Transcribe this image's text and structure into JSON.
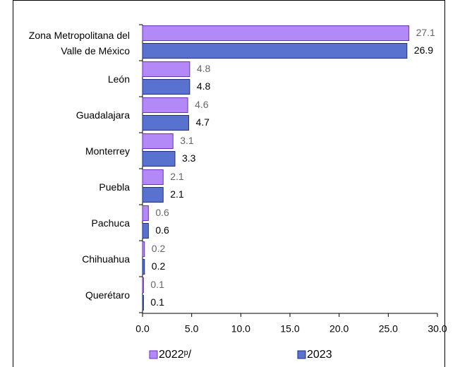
{
  "chart_data": {
    "type": "bar",
    "orientation": "horizontal",
    "categories": [
      "Zona Metropolitana del Valle de México",
      "León",
      "Guadalajara",
      "Monterrey",
      "Puebla",
      "Pachuca",
      "Chihuahua",
      "Querétaro"
    ],
    "series": [
      {
        "name": "2022ᵖ/",
        "color": "#b388f7",
        "values": [
          27.1,
          4.8,
          4.6,
          3.1,
          2.1,
          0.6,
          0.2,
          0.1
        ]
      },
      {
        "name": "2023",
        "color": "#5a72cf",
        "values": [
          26.9,
          4.8,
          4.7,
          3.3,
          2.1,
          0.6,
          0.2,
          0.1
        ]
      }
    ],
    "xlim": [
      0,
      30
    ],
    "xticks": [
      {
        "value": 0,
        "label": "0.0"
      },
      {
        "value": 5,
        "label": "5.0"
      },
      {
        "value": 10,
        "label": "10.0"
      },
      {
        "value": 15,
        "label": "15.0"
      },
      {
        "value": 20,
        "label": "20.0"
      },
      {
        "value": 25,
        "label": "25.0"
      },
      {
        "value": 30,
        "label": "30.0"
      }
    ],
    "legend": "bottom"
  }
}
